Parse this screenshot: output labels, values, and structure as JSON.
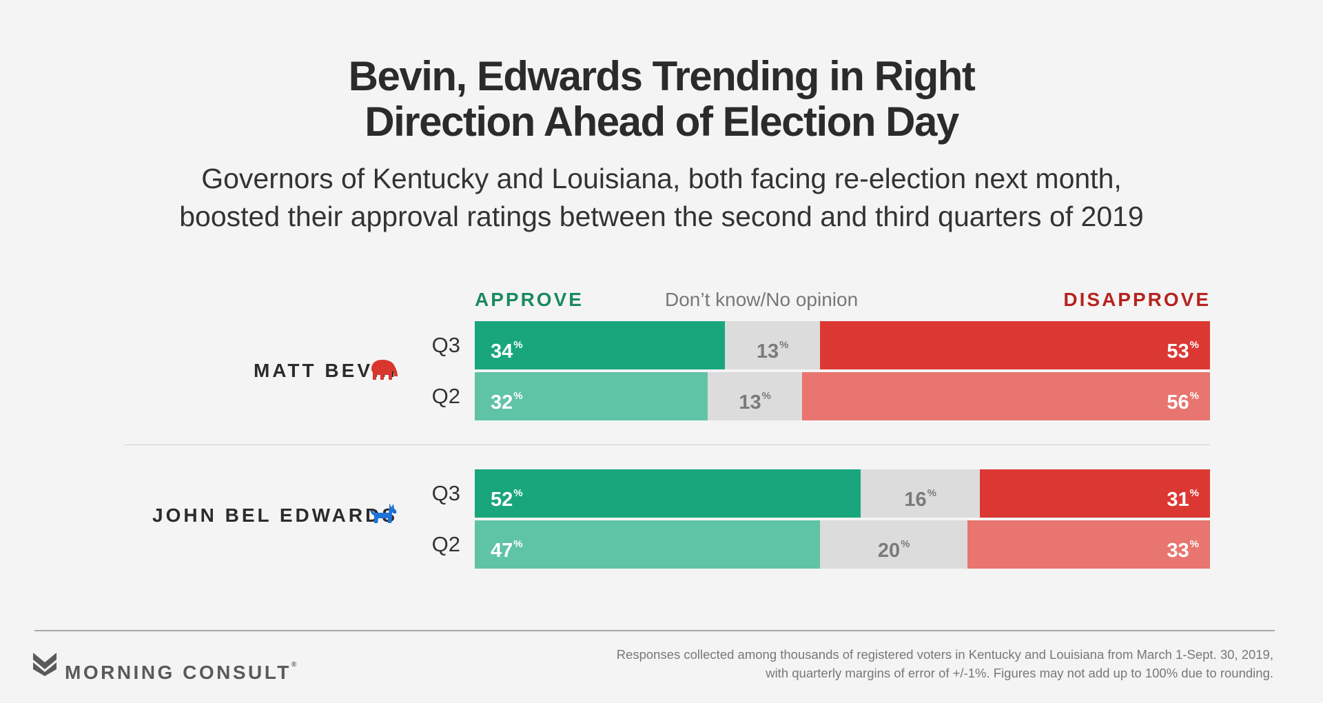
{
  "title_line1": "Bevin, Edwards Trending in Right",
  "title_line2": "Direction Ahead of Election Day",
  "subtitle_line1": "Governors of Kentucky and Louisiana, both facing re-election next month,",
  "subtitle_line2": "boosted their approval ratings between the second and third quarters of 2019",
  "legend": {
    "approve": "APPROVE",
    "neutral": "Don’t know/No opinion",
    "disapprove": "DISAPPROVE"
  },
  "pct_symbol": "%",
  "colors": {
    "approve_q3": "#1aa67c",
    "approve_q2": "#5fc3a5",
    "neutral": "#dcdcdc",
    "disapprove_q3": "#dc3833",
    "disapprove_q2": "#e87570",
    "republican": "#d9362f",
    "democrat": "#1f73d6"
  },
  "icons": {
    "bevin": "elephant-icon",
    "edwards": "donkey-icon",
    "logo": "morning-consult-logo-icon"
  },
  "chart_data": {
    "type": "bar",
    "orientation": "horizontal-stacked-100",
    "categories": [
      "Approve",
      "Don’t know/No opinion",
      "Disapprove"
    ],
    "groups": [
      {
        "name": "MATT BEVIN",
        "rows": [
          {
            "label": "Q3",
            "values": [
              34,
              13,
              53
            ]
          },
          {
            "label": "Q2",
            "values": [
              32,
              13,
              56
            ]
          }
        ]
      },
      {
        "name": "JOHN BEL EDWARDS",
        "rows": [
          {
            "label": "Q3",
            "values": [
              52,
              16,
              31
            ]
          },
          {
            "label": "Q2",
            "values": [
              47,
              20,
              33
            ]
          }
        ]
      }
    ],
    "legend_placement": "top",
    "grid": false
  },
  "footer": {
    "brand": "MORNING CONSULT",
    "registered": "®",
    "note_line1": "Responses collected among thousands of registered voters in Kentucky and Louisiana from March 1-Sept. 30, 2019,",
    "note_line2": "with quarterly margins of error of +/-1%. Figures may not add up to 100% due to rounding."
  }
}
